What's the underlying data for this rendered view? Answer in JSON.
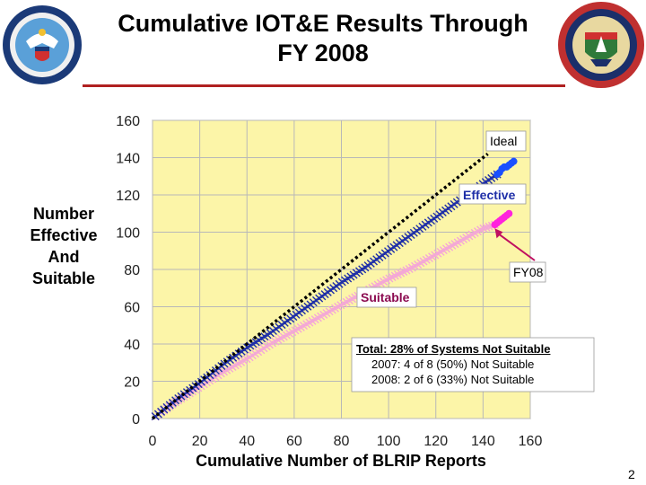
{
  "title_line1": "Cumulative IOT&E Results Through",
  "title_line2": "FY 2008",
  "page_number": "2",
  "seals": {
    "left": "Department of Defense seal",
    "right": "Operational Test and Evaluation Director seal",
    "left_icon": "eagle-shield-icon",
    "right_icon": "dote-shield-icon"
  },
  "colors": {
    "plot_bg": "#fcf5a8",
    "grid": "#b8b8b8",
    "ideal": "#000000",
    "effective": "#1f2fa8",
    "effective_fy08": "#1a4fff",
    "suitable": "#f4a8d6",
    "suitable_fy08": "#ff22dd",
    "suitable_label": "#8b0a50",
    "title_rule": "#b02020"
  },
  "chart_data": {
    "type": "line",
    "title": "Cumulative IOT&E Results Through FY 2008",
    "xlabel": "Cumulative Number of BLRIP Reports",
    "ylabel_lines": [
      "Number",
      "Effective",
      "And",
      "Suitable"
    ],
    "xlim": [
      0,
      160
    ],
    "ylim": [
      0,
      160
    ],
    "x_ticks": [
      0,
      20,
      40,
      60,
      80,
      100,
      120,
      140,
      160
    ],
    "y_ticks": [
      0,
      20,
      40,
      60,
      80,
      100,
      120,
      140,
      160
    ],
    "grid": true,
    "series": [
      {
        "name": "Ideal",
        "style": "dotted",
        "x": [
          0,
          142
        ],
        "y": [
          0,
          142
        ]
      },
      {
        "name": "Effective",
        "style": "crossed",
        "x": [
          0,
          10,
          20,
          30,
          40,
          50,
          60,
          70,
          80,
          90,
          100,
          110,
          120,
          130,
          140,
          146
        ],
        "y": [
          0,
          10,
          19,
          29,
          38,
          46,
          55,
          64,
          73,
          81,
          90,
          99,
          108,
          117,
          126,
          131
        ]
      },
      {
        "name": "Effective FY08",
        "style": "dots",
        "x": [
          146,
          147,
          148,
          149,
          150,
          151,
          152,
          153
        ],
        "y": [
          131,
          132,
          134,
          135,
          135,
          136,
          137,
          138
        ]
      },
      {
        "name": "Suitable",
        "style": "crossed",
        "x": [
          0,
          10,
          20,
          30,
          40,
          50,
          60,
          70,
          80,
          90,
          100,
          110,
          120,
          130,
          140,
          145
        ],
        "y": [
          0,
          9,
          17,
          25,
          32,
          40,
          47,
          54,
          61,
          68,
          75,
          81,
          88,
          95,
          102,
          104
        ]
      },
      {
        "name": "Suitable FY08",
        "style": "dots",
        "x": [
          145,
          146,
          147,
          148,
          149,
          150,
          151
        ],
        "y": [
          104,
          105,
          106,
          107,
          108,
          109,
          110
        ]
      }
    ],
    "annotations": {
      "ideal": "Ideal",
      "effective": "Effective",
      "fy08": "FY08",
      "suitable": "Suitable",
      "note_lines": [
        "Total: 28% of Systems Not Suitable",
        "2007:  4 of 8 (50%) Not Suitable",
        "2008:  2 of 6 (33%) Not Suitable"
      ]
    }
  }
}
